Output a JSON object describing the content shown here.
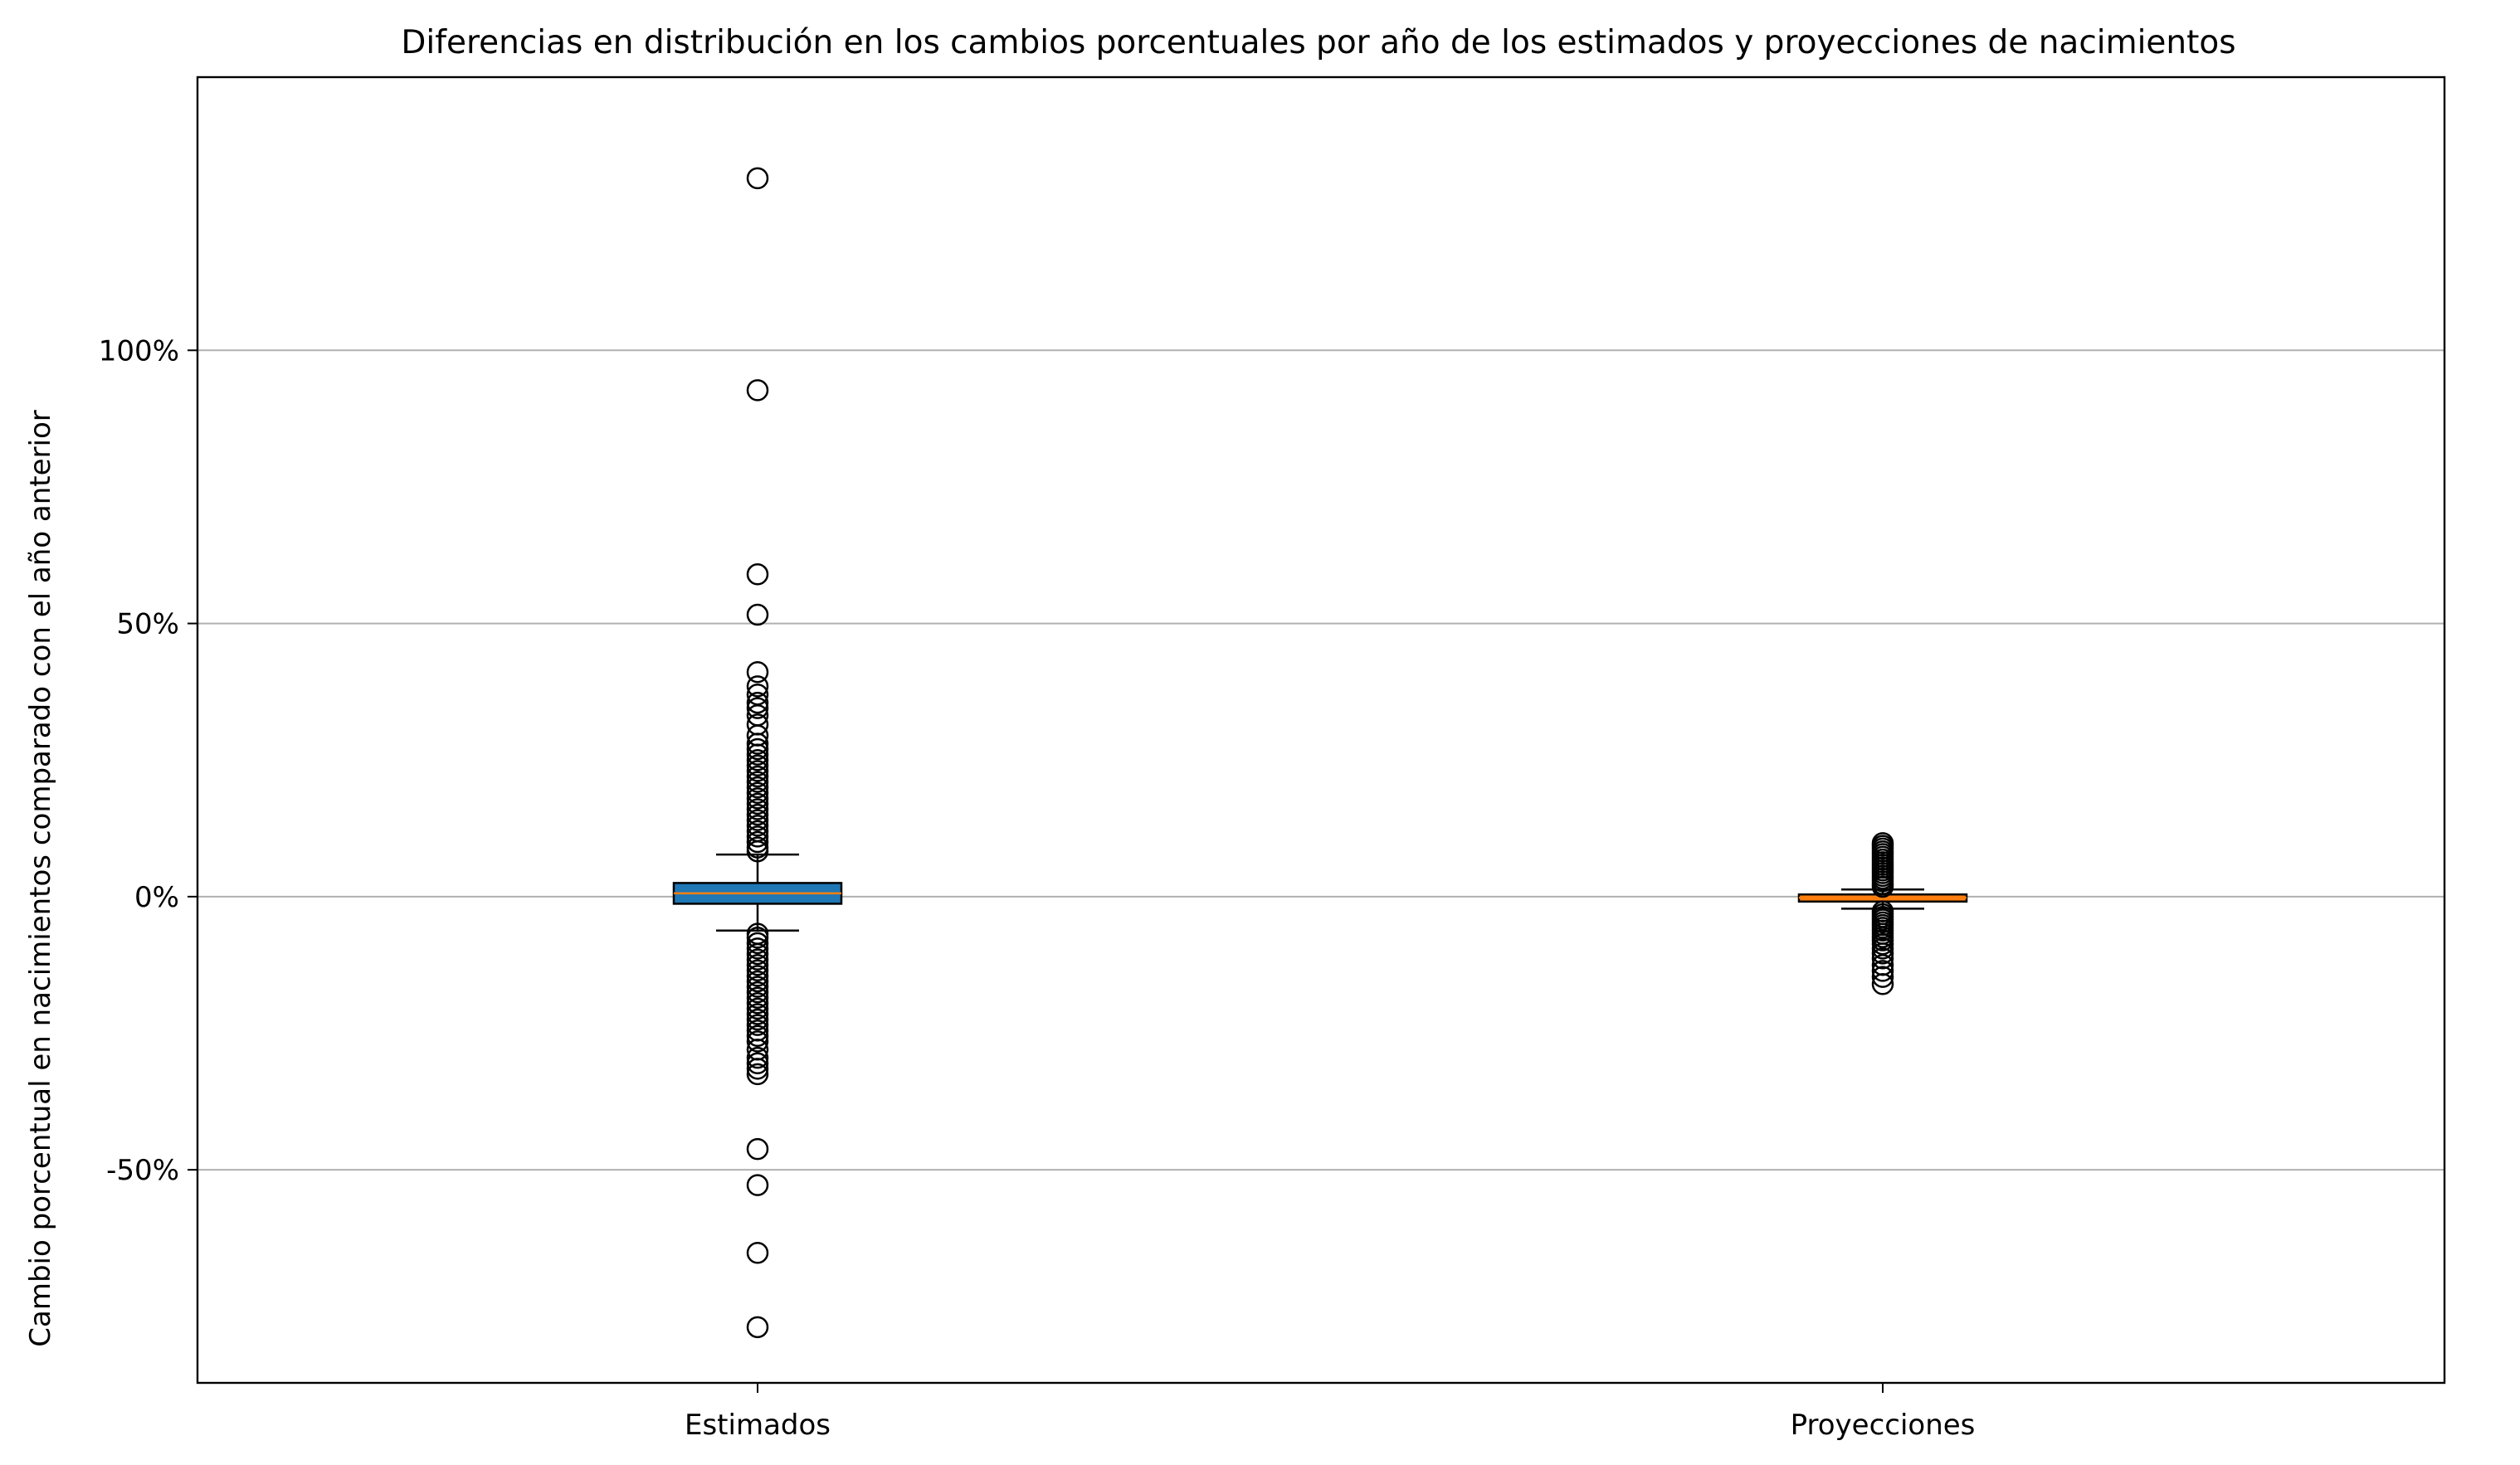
{
  "chart_data": {
    "type": "boxplot",
    "title": "Diferencias en distribución en los cambios porcentuales por año de los estimados y proyecciones de nacimientos",
    "xlabel": "",
    "ylabel": "Cambio porcentual en nacimientos comparado con el año anterior",
    "ylim": [
      -89,
      150
    ],
    "yticks": [
      {
        "value": -50,
        "label": "-50%"
      },
      {
        "value": 0,
        "label": "0%"
      },
      {
        "value": 50,
        "label": "50%"
      },
      {
        "value": 100,
        "label": "100%"
      }
    ],
    "grid": "y-major",
    "categories": [
      "Estimados",
      "Proyecciones"
    ],
    "series": [
      {
        "category": "Estimados",
        "color": "#1f77b4",
        "median_color": "#ff7f0e",
        "q1": -1.3,
        "median": 0.6,
        "q3": 2.5,
        "whisker_low": -6.2,
        "whisker_high": 7.7,
        "outliers": [
          131.5,
          92.7,
          59.0,
          51.6,
          41.1,
          38.5,
          37.0,
          35.5,
          34.5,
          33.2,
          31.5,
          29.5,
          28.0,
          27.0,
          26.0,
          25.0,
          24.0,
          23.0,
          22.0,
          21.0,
          20.0,
          19.0,
          18.0,
          17.0,
          16.0,
          15.0,
          14.0,
          13.0,
          12.0,
          11.0,
          10.0,
          9.0,
          8.3,
          -6.8,
          -7.5,
          -8.5,
          -9.5,
          -10.5,
          -11.5,
          -12.5,
          -13.5,
          -14.5,
          -15.5,
          -16.5,
          -17.5,
          -18.5,
          -19.5,
          -20.5,
          -21.5,
          -22.5,
          -23.5,
          -24.5,
          -25.5,
          -26.5,
          -28.0,
          -29.5,
          -30.5,
          -31.5,
          -32.5,
          -46.2,
          -52.8,
          -65.2,
          -78.8
        ]
      },
      {
        "category": "Proyecciones",
        "color": "#ff7f0e",
        "median_color": "#ff7f0e",
        "q1": -0.9,
        "median": -0.2,
        "q3": 0.4,
        "whisker_low": -2.2,
        "whisker_high": 1.3,
        "outliers": [
          9.8,
          9.3,
          8.8,
          8.3,
          7.8,
          7.3,
          6.8,
          6.3,
          5.8,
          5.3,
          4.8,
          4.3,
          3.8,
          3.3,
          2.8,
          2.3,
          1.8,
          -2.7,
          -3.2,
          -3.7,
          -4.2,
          -4.7,
          -5.2,
          -5.7,
          -6.2,
          -6.8,
          -7.4,
          -8.0,
          -8.7,
          -9.5,
          -10.4,
          -11.3,
          -12.5,
          -13.6,
          -14.7,
          -16.0
        ]
      }
    ]
  }
}
